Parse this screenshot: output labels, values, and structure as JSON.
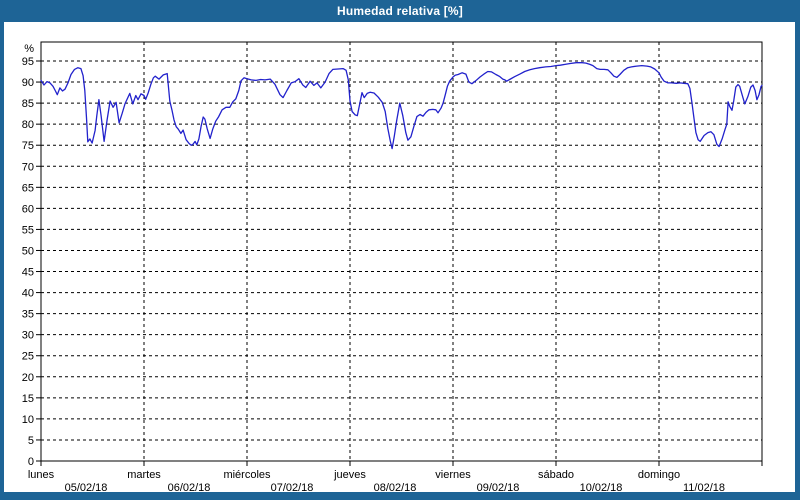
{
  "window": {
    "title": "Humedad relativa [%]"
  },
  "colors": {
    "frame": "#1e6496",
    "panel_bg": "#ffffff",
    "line": "#2222cc",
    "grid": "#000000",
    "text": "#000000",
    "title_text": "#ffffff"
  },
  "chart_data": {
    "type": "line",
    "title": "Humedad relativa [%]",
    "ylabel": "%",
    "ylim": [
      0,
      100
    ],
    "ytick_step": 5,
    "ytick_labels": [
      "0",
      "5",
      "10",
      "15",
      "20",
      "25",
      "30",
      "35",
      "40",
      "45",
      "50",
      "55",
      "60",
      "65",
      "70",
      "75",
      "80",
      "85",
      "90",
      "95"
    ],
    "y_unit_label": "%",
    "grid": "dashed-black",
    "legend": "none",
    "x_unit": "hours from 05/02/18 00:00",
    "xlim": [
      0,
      168
    ],
    "days": [
      {
        "name": "lunes",
        "date": "05/02/18"
      },
      {
        "name": "martes",
        "date": "06/02/18"
      },
      {
        "name": "miércoles",
        "date": "07/02/18"
      },
      {
        "name": "jueves",
        "date": "08/02/18"
      },
      {
        "name": "viernes",
        "date": "09/02/18"
      },
      {
        "name": "sábado",
        "date": "10/02/18"
      },
      {
        "name": "domingo",
        "date": "11/02/18"
      }
    ],
    "series": [
      {
        "name": "Humedad relativa",
        "color": "#2222cc",
        "points": [
          [
            0,
            90.4
          ],
          [
            0.7,
            89.3
          ],
          [
            1.4,
            90.1
          ],
          [
            2.1,
            89.8
          ],
          [
            2.8,
            89.0
          ],
          [
            3.3,
            88.0
          ],
          [
            3.8,
            87.0
          ],
          [
            4.4,
            88.6
          ],
          [
            5.0,
            87.9
          ],
          [
            5.6,
            88.3
          ],
          [
            6.3,
            89.8
          ],
          [
            7.0,
            91.8
          ],
          [
            7.8,
            93.0
          ],
          [
            8.6,
            93.4
          ],
          [
            9.3,
            93.2
          ],
          [
            9.8,
            91.5
          ],
          [
            10.2,
            88.0
          ],
          [
            10.6,
            81.5
          ],
          [
            10.9,
            75.8
          ],
          [
            11.4,
            76.5
          ],
          [
            11.9,
            75.5
          ],
          [
            12.6,
            78.5
          ],
          [
            13.0,
            82.0
          ],
          [
            13.5,
            85.8
          ],
          [
            14.0,
            82.0
          ],
          [
            14.7,
            75.9
          ],
          [
            15.4,
            81.0
          ],
          [
            16.1,
            85.5
          ],
          [
            16.8,
            84.0
          ],
          [
            17.5,
            85.2
          ],
          [
            18.2,
            80.3
          ],
          [
            18.9,
            82.5
          ],
          [
            19.6,
            84.9
          ],
          [
            20.7,
            87.3
          ],
          [
            21.4,
            84.8
          ],
          [
            22.1,
            86.8
          ],
          [
            22.6,
            85.8
          ],
          [
            23.3,
            87.2
          ],
          [
            24.0,
            86.8
          ],
          [
            24.4,
            85.9
          ],
          [
            25.0,
            87.5
          ],
          [
            25.6,
            89.5
          ],
          [
            26.2,
            91.0
          ],
          [
            26.6,
            91.4
          ],
          [
            27.5,
            90.7
          ],
          [
            28.5,
            91.7
          ],
          [
            29.4,
            92.0
          ],
          [
            30.0,
            85.5
          ],
          [
            30.5,
            83.4
          ],
          [
            31.0,
            81.0
          ],
          [
            31.5,
            79.4
          ],
          [
            32.0,
            78.8
          ],
          [
            32.6,
            77.8
          ],
          [
            33.1,
            78.6
          ],
          [
            33.8,
            76.3
          ],
          [
            34.5,
            75.4
          ],
          [
            35.0,
            75.0
          ],
          [
            35.4,
            75.2
          ],
          [
            35.9,
            75.9
          ],
          [
            36.3,
            75.1
          ],
          [
            36.8,
            76.5
          ],
          [
            37.3,
            79.5
          ],
          [
            37.8,
            81.7
          ],
          [
            38.2,
            81.2
          ],
          [
            38.7,
            79.0
          ],
          [
            39.4,
            76.6
          ],
          [
            40.0,
            78.8
          ],
          [
            40.7,
            80.7
          ],
          [
            41.4,
            81.8
          ],
          [
            42.2,
            83.4
          ],
          [
            43.1,
            84.0
          ],
          [
            44.0,
            84.0
          ],
          [
            44.7,
            85.3
          ],
          [
            45.4,
            86.0
          ],
          [
            46.1,
            88.0
          ],
          [
            46.6,
            90.3
          ],
          [
            47.3,
            91.0
          ],
          [
            48.0,
            90.8
          ],
          [
            49.0,
            90.5
          ],
          [
            50.1,
            90.4
          ],
          [
            51.2,
            90.6
          ],
          [
            52.2,
            90.5
          ],
          [
            53.4,
            90.7
          ],
          [
            54.5,
            89.5
          ],
          [
            55.7,
            87.0
          ],
          [
            56.4,
            86.3
          ],
          [
            57.3,
            88.0
          ],
          [
            58.3,
            89.8
          ],
          [
            59.2,
            90.1
          ],
          [
            60.1,
            90.8
          ],
          [
            61.0,
            89.3
          ],
          [
            61.7,
            88.7
          ],
          [
            62.7,
            90.2
          ],
          [
            63.6,
            89.2
          ],
          [
            64.3,
            89.8
          ],
          [
            65.2,
            88.6
          ],
          [
            66.2,
            90.0
          ],
          [
            67.1,
            92.0
          ],
          [
            68.0,
            93.0
          ],
          [
            69.2,
            93.1
          ],
          [
            70.4,
            93.2
          ],
          [
            71.1,
            92.8
          ],
          [
            71.6,
            90.5
          ],
          [
            72.0,
            85.5
          ],
          [
            72.5,
            83.0
          ],
          [
            73.2,
            82.2
          ],
          [
            73.7,
            82.0
          ],
          [
            74.3,
            85.0
          ],
          [
            74.8,
            87.5
          ],
          [
            75.3,
            86.3
          ],
          [
            76.0,
            87.3
          ],
          [
            76.7,
            87.6
          ],
          [
            77.6,
            87.4
          ],
          [
            78.6,
            86.4
          ],
          [
            79.5,
            85.2
          ],
          [
            80.2,
            83.0
          ],
          [
            80.8,
            79.0
          ],
          [
            81.4,
            76.0
          ],
          [
            81.8,
            74.2
          ],
          [
            82.3,
            77.0
          ],
          [
            82.9,
            81.0
          ],
          [
            83.6,
            85.0
          ],
          [
            84.3,
            82.0
          ],
          [
            85.0,
            78.0
          ],
          [
            85.5,
            76.2
          ],
          [
            86.2,
            77.0
          ],
          [
            86.9,
            79.5
          ],
          [
            87.6,
            81.8
          ],
          [
            88.3,
            82.3
          ],
          [
            89.0,
            81.9
          ],
          [
            89.7,
            82.8
          ],
          [
            90.4,
            83.4
          ],
          [
            91.3,
            83.5
          ],
          [
            92.0,
            83.4
          ],
          [
            92.5,
            82.7
          ],
          [
            93.2,
            83.8
          ],
          [
            93.7,
            85.0
          ],
          [
            94.2,
            87.0
          ],
          [
            94.7,
            89.0
          ],
          [
            95.2,
            90.2
          ],
          [
            96.0,
            91.2
          ],
          [
            96.5,
            91.6
          ],
          [
            97.2,
            91.8
          ],
          [
            98.1,
            92.2
          ],
          [
            99.0,
            91.9
          ],
          [
            99.7,
            90.0
          ],
          [
            100.4,
            89.6
          ],
          [
            101.3,
            90.3
          ],
          [
            102.3,
            91.2
          ],
          [
            103.2,
            91.9
          ],
          [
            104.1,
            92.5
          ],
          [
            105.0,
            92.4
          ],
          [
            106.0,
            91.8
          ],
          [
            106.9,
            91.3
          ],
          [
            107.6,
            90.7
          ],
          [
            108.1,
            90.5
          ],
          [
            108.5,
            90.2
          ],
          [
            109.2,
            90.6
          ],
          [
            110.4,
            91.3
          ],
          [
            111.6,
            91.9
          ],
          [
            112.7,
            92.5
          ],
          [
            113.9,
            92.9
          ],
          [
            115.0,
            93.2
          ],
          [
            116.2,
            93.4
          ],
          [
            117.6,
            93.6
          ],
          [
            118.8,
            93.7
          ],
          [
            120.0,
            93.9
          ],
          [
            121.0,
            94.0
          ],
          [
            122.1,
            94.2
          ],
          [
            123.3,
            94.4
          ],
          [
            124.7,
            94.6
          ],
          [
            126.1,
            94.6
          ],
          [
            127.0,
            94.5
          ],
          [
            127.9,
            94.2
          ],
          [
            128.6,
            93.9
          ],
          [
            129.5,
            93.2
          ],
          [
            130.3,
            93.0
          ],
          [
            131.2,
            93.0
          ],
          [
            132.1,
            92.9
          ],
          [
            132.8,
            92.2
          ],
          [
            133.5,
            91.4
          ],
          [
            134.2,
            91.1
          ],
          [
            134.9,
            91.8
          ],
          [
            135.8,
            92.8
          ],
          [
            136.7,
            93.4
          ],
          [
            137.6,
            93.6
          ],
          [
            138.8,
            93.8
          ],
          [
            140.0,
            93.9
          ],
          [
            141.2,
            93.8
          ],
          [
            142.1,
            93.6
          ],
          [
            143.0,
            93.1
          ],
          [
            144.0,
            92.2
          ],
          [
            144.5,
            91.2
          ],
          [
            145.2,
            90.2
          ],
          [
            145.7,
            90.0
          ],
          [
            146.1,
            89.8
          ],
          [
            147.0,
            89.8
          ],
          [
            148.0,
            89.7
          ],
          [
            148.9,
            89.8
          ],
          [
            149.8,
            89.7
          ],
          [
            150.7,
            89.6
          ],
          [
            151.2,
            88.5
          ],
          [
            151.7,
            85.0
          ],
          [
            152.2,
            81.0
          ],
          [
            152.6,
            78.0
          ],
          [
            153.1,
            76.3
          ],
          [
            153.6,
            75.9
          ],
          [
            154.5,
            77.3
          ],
          [
            155.4,
            78.0
          ],
          [
            156.1,
            78.2
          ],
          [
            156.8,
            77.5
          ],
          [
            157.5,
            75.2
          ],
          [
            158.0,
            74.7
          ],
          [
            158.7,
            76.5
          ],
          [
            159.4,
            78.8
          ],
          [
            159.8,
            80.0
          ],
          [
            160.1,
            85.3
          ],
          [
            160.5,
            84.2
          ],
          [
            161.0,
            83.3
          ],
          [
            161.4,
            85.5
          ],
          [
            161.9,
            88.8
          ],
          [
            162.4,
            89.4
          ],
          [
            162.8,
            89.0
          ],
          [
            163.5,
            86.5
          ],
          [
            164.0,
            84.8
          ],
          [
            164.7,
            86.5
          ],
          [
            165.4,
            88.8
          ],
          [
            165.9,
            89.3
          ],
          [
            166.4,
            88.0
          ],
          [
            166.8,
            85.8
          ],
          [
            167.3,
            87.0
          ],
          [
            167.8,
            89.0
          ],
          [
            168.0,
            89.2
          ]
        ]
      }
    ]
  }
}
